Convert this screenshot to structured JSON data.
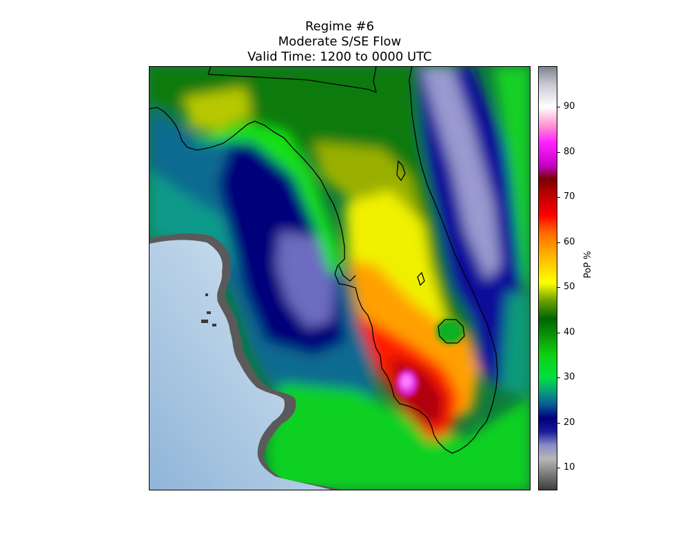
{
  "chart_data": {
    "type": "heatmap",
    "title": [
      "Regime #6",
      "Moderate S/SE Flow",
      "Valid Time: 1200 to 0000 UTC"
    ],
    "colorbar": {
      "label": "PoP %",
      "range": [
        5,
        99
      ],
      "ticks": [
        10,
        20,
        30,
        40,
        50,
        60,
        70,
        80,
        90
      ],
      "stops": [
        {
          "v": 5,
          "c": "#3a3a3a"
        },
        {
          "v": 12,
          "c": "#b8b8b8"
        },
        {
          "v": 15,
          "c": "#8a8ac8"
        },
        {
          "v": 18,
          "c": "#1a1a9a"
        },
        {
          "v": 21,
          "c": "#00007a"
        },
        {
          "v": 24,
          "c": "#0a5a96"
        },
        {
          "v": 27,
          "c": "#0aa07a"
        },
        {
          "v": 30,
          "c": "#00e040"
        },
        {
          "v": 35,
          "c": "#10d010"
        },
        {
          "v": 39,
          "c": "#0a9a0a"
        },
        {
          "v": 43,
          "c": "#006400"
        },
        {
          "v": 47,
          "c": "#6aa000"
        },
        {
          "v": 51,
          "c": "#ffff00"
        },
        {
          "v": 57,
          "c": "#ffb400"
        },
        {
          "v": 62,
          "c": "#ff6a00"
        },
        {
          "v": 66,
          "c": "#ff0000"
        },
        {
          "v": 71,
          "c": "#b40000"
        },
        {
          "v": 74,
          "c": "#780000"
        },
        {
          "v": 77,
          "c": "#c800c8"
        },
        {
          "v": 82,
          "c": "#ff20ff"
        },
        {
          "v": 86,
          "c": "#ff9ad0"
        },
        {
          "v": 90,
          "c": "#ffffff"
        },
        {
          "v": 95,
          "c": "#c8c8d2"
        },
        {
          "v": 99,
          "c": "#78828c"
        }
      ]
    },
    "regions": [
      {
        "name": "panhandle-inland",
        "pop": 42
      },
      {
        "name": "big-bend-yellow",
        "pop": 49
      },
      {
        "name": "north-gulf-waters",
        "pop": 24
      },
      {
        "name": "atlantic-offshore-band",
        "pop": 14
      },
      {
        "name": "southwest-florida-max",
        "pop": 82
      },
      {
        "name": "south-florida-interior",
        "pop": 63
      },
      {
        "name": "florida-straits",
        "pop": 32
      }
    ],
    "colors": {
      "frame": "#000000",
      "gulf_no_data": "#9fc1de",
      "coastline": "#000000"
    }
  }
}
